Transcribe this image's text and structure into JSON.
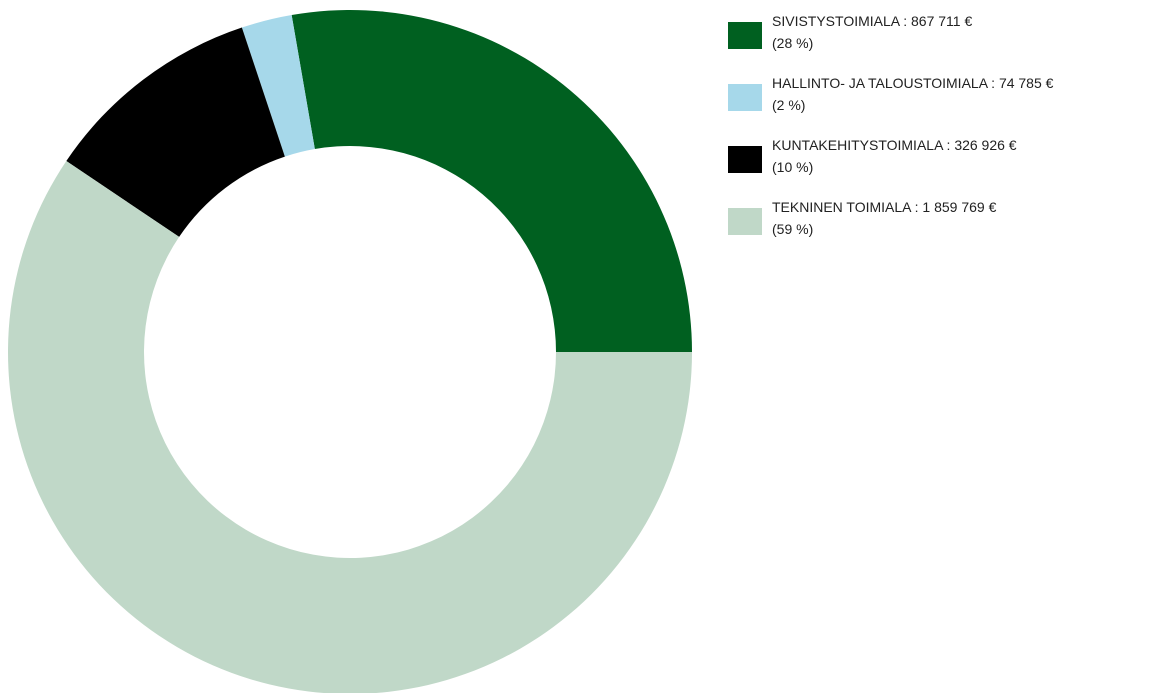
{
  "chart_data": {
    "type": "donut",
    "categories": [
      "SIVISTYSTOIMIALA",
      "HALLINTO- JA TALOUSTOIMIALA",
      "KUNTAKEHITYSTOIMIALA",
      "TEKNINEN TOIMIALA"
    ],
    "separator": " : ",
    "values": [
      867711,
      74785,
      326926,
      1859769
    ],
    "value_labels": [
      "867 711 €",
      "74 785 €",
      "326 926 €",
      "1 859 769 €"
    ],
    "percents": [
      28,
      2,
      10,
      59
    ],
    "percent_labels": [
      "(28 %)",
      "(2 %)",
      "(10 %)",
      "(59 %)"
    ],
    "colors": [
      "#006020",
      "#a6d8ea",
      "#000000",
      "#c0d8c8"
    ],
    "legend": "top-right"
  }
}
